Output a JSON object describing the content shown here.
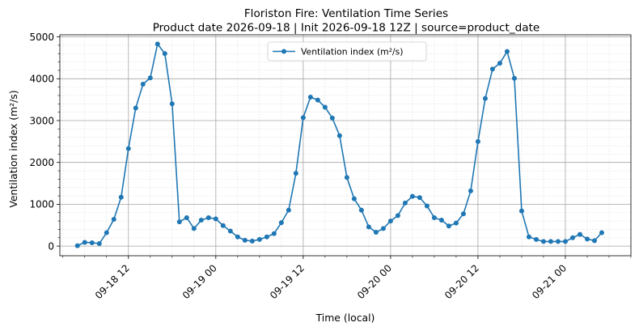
{
  "chart_data": {
    "type": "line",
    "title": "Floriston Fire: Ventilation Time Series",
    "subtitle": "Product date 2026-09-18 | Init 2026-09-18 12Z | source=product_date",
    "xlabel": "Time (local)",
    "ylabel": "Ventilation index (m²/s)",
    "x_tick_labels": [
      "09-18 12",
      "09-19 00",
      "09-19 12",
      "09-20 00",
      "09-20 12",
      "09-21 00"
    ],
    "y_ticks": [
      0,
      1000,
      2000,
      3000,
      4000,
      5000
    ],
    "xlim": [
      "2026-09-18 02:35",
      "2026-09-21 09:00"
    ],
    "ylim": [
      -230,
      5050
    ],
    "grid": true,
    "legend_position": "top-center",
    "series": [
      {
        "name": "Ventilation index (m²/s)",
        "color": "#1f77b4",
        "x": [
          "2026-09-18 05:00",
          "2026-09-18 06:00",
          "2026-09-18 07:00",
          "2026-09-18 08:00",
          "2026-09-18 09:00",
          "2026-09-18 10:00",
          "2026-09-18 11:00",
          "2026-09-18 12:00",
          "2026-09-18 13:00",
          "2026-09-18 14:00",
          "2026-09-18 15:00",
          "2026-09-18 16:00",
          "2026-09-18 17:00",
          "2026-09-18 18:00",
          "2026-09-18 19:00",
          "2026-09-18 20:00",
          "2026-09-18 21:00",
          "2026-09-18 22:00",
          "2026-09-18 23:00",
          "2026-09-19 00:00",
          "2026-09-19 01:00",
          "2026-09-19 02:00",
          "2026-09-19 03:00",
          "2026-09-19 04:00",
          "2026-09-19 05:00",
          "2026-09-19 06:00",
          "2026-09-19 07:00",
          "2026-09-19 08:00",
          "2026-09-19 09:00",
          "2026-09-19 10:00",
          "2026-09-19 11:00",
          "2026-09-19 12:00",
          "2026-09-19 13:00",
          "2026-09-19 14:00",
          "2026-09-19 15:00",
          "2026-09-19 16:00",
          "2026-09-19 17:00",
          "2026-09-19 18:00",
          "2026-09-19 19:00",
          "2026-09-19 20:00",
          "2026-09-19 21:00",
          "2026-09-19 22:00",
          "2026-09-19 23:00",
          "2026-09-20 00:00",
          "2026-09-20 01:00",
          "2026-09-20 02:00",
          "2026-09-20 03:00",
          "2026-09-20 04:00",
          "2026-09-20 05:00",
          "2026-09-20 06:00",
          "2026-09-20 07:00",
          "2026-09-20 08:00",
          "2026-09-20 09:00",
          "2026-09-20 10:00",
          "2026-09-20 11:00",
          "2026-09-20 12:00",
          "2026-09-20 13:00",
          "2026-09-20 14:00",
          "2026-09-20 15:00",
          "2026-09-20 16:00",
          "2026-09-20 17:00",
          "2026-09-20 18:00",
          "2026-09-20 19:00",
          "2026-09-20 20:00",
          "2026-09-20 21:00",
          "2026-09-20 22:00",
          "2026-09-20 23:00",
          "2026-09-21 00:00",
          "2026-09-21 01:00",
          "2026-09-21 02:00",
          "2026-09-21 03:00",
          "2026-09-21 04:00",
          "2026-09-21 05:00"
        ],
        "y": [
          10,
          90,
          80,
          60,
          320,
          640,
          1170,
          2330,
          3300,
          3870,
          4020,
          4830,
          4600,
          3400,
          580,
          680,
          420,
          620,
          680,
          650,
          490,
          360,
          220,
          140,
          120,
          160,
          220,
          300,
          560,
          860,
          1740,
          3070,
          3560,
          3490,
          3320,
          3060,
          2640,
          1640,
          1130,
          860,
          460,
          330,
          420,
          600,
          730,
          1030,
          1190,
          1160,
          960,
          680,
          620,
          480,
          550,
          770,
          1320,
          2500,
          3530,
          4230,
          4370,
          4650,
          4010,
          840,
          220,
          160,
          110,
          110,
          110,
          110,
          200,
          280,
          170,
          130,
          320
        ]
      }
    ]
  }
}
